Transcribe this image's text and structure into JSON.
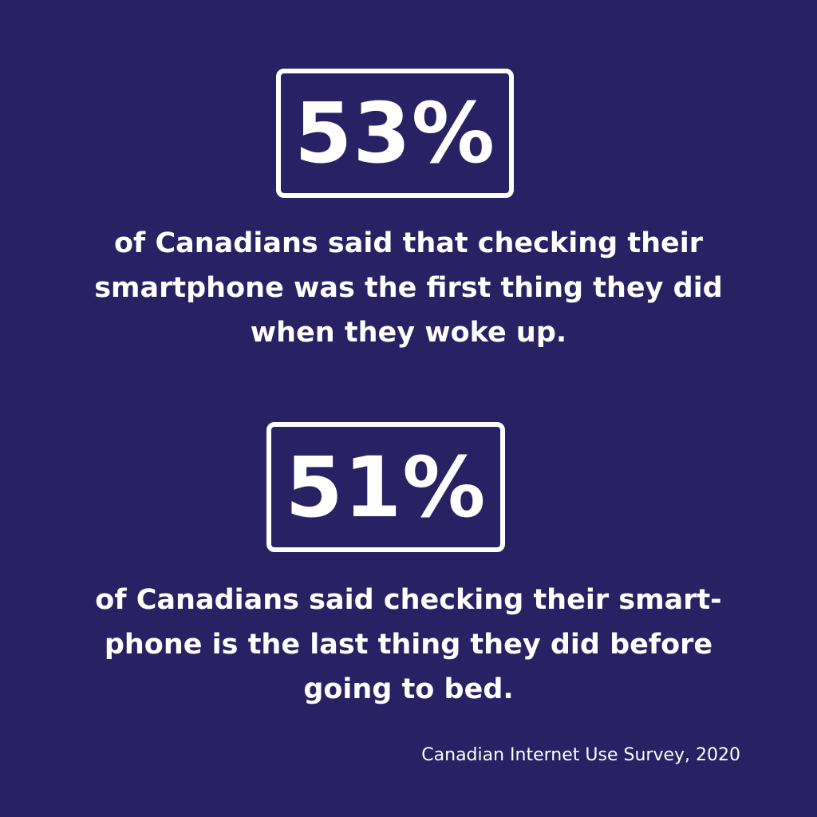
{
  "background_color": "#282163",
  "text_color": "#ffffff",
  "stats": [
    {
      "value": "53%",
      "lines": [
        "of Canadians said that checking their",
        "smartphone was the first thing they did",
        "when they woke up."
      ]
    },
    {
      "value": "51%",
      "lines": [
        "of Canadians said checking their smart-",
        "phone is the last thing they did before",
        "going to bed."
      ]
    }
  ],
  "source": "Canadian Internet Use Survey, 2020"
}
